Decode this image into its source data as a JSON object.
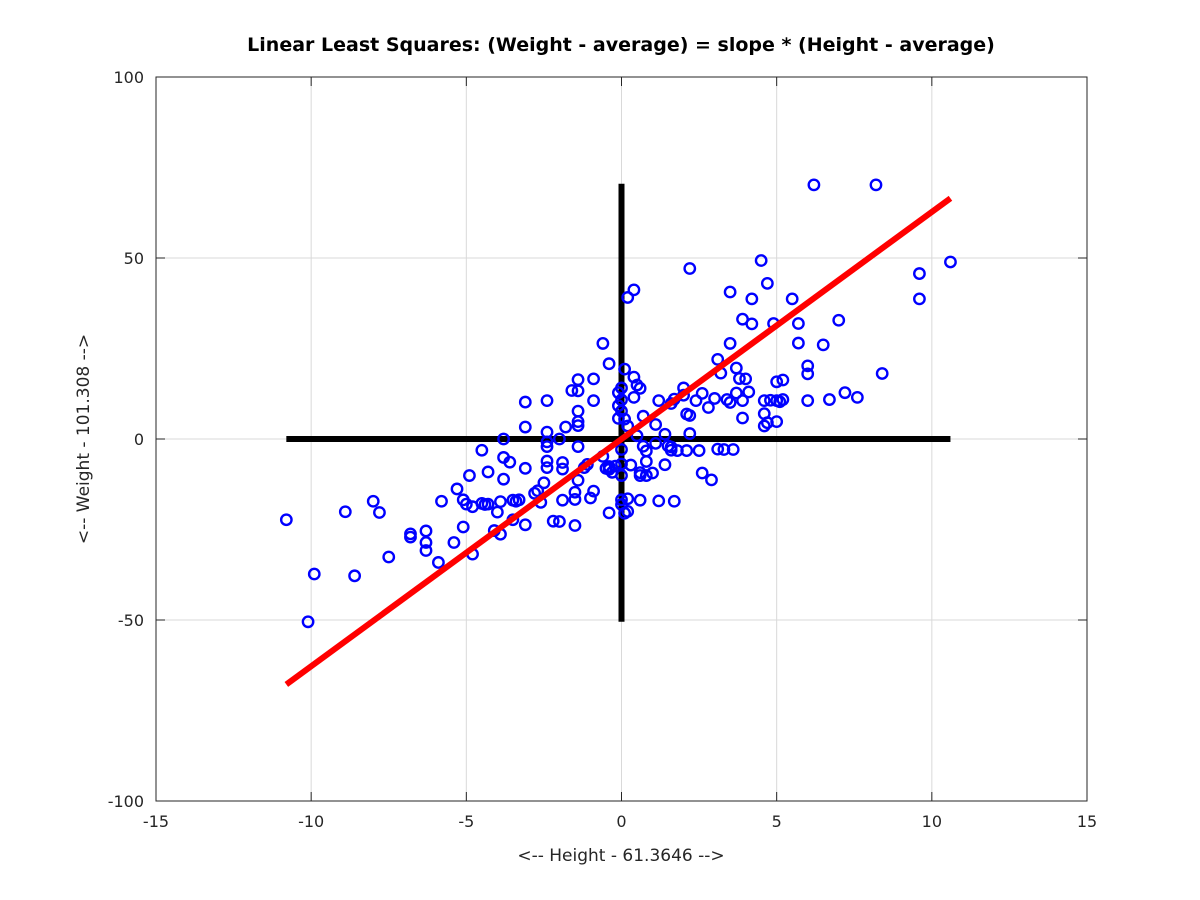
{
  "chart_data": {
    "type": "scatter",
    "title": "Linear Least Squares: (Weight - average) = slope * (Height - average)",
    "xlabel": "<-- Height - 61.3646 -->",
    "ylabel": "<-- Weight - 101.308 -->",
    "xlim": [
      -15,
      15
    ],
    "ylim": [
      -100,
      100
    ],
    "xticks": [
      -15,
      -10,
      -5,
      0,
      5,
      10,
      15
    ],
    "yticks": [
      -100,
      -50,
      0,
      50,
      100
    ],
    "grid": true,
    "colors": {
      "points": "#0000ff",
      "fit": "#ff0000",
      "crosshair": "#000000",
      "grid": "#d9d9d9",
      "axis": "#262626"
    },
    "crosshair": {
      "horizontal": {
        "x": [
          -10.8,
          10.6
        ],
        "y": 0
      },
      "vertical": {
        "x": 0,
        "y": [
          -50.5,
          70.5
        ]
      }
    },
    "fit_line": {
      "name": "",
      "x": [
        -10.8,
        10.6
      ],
      "y": [
        -67.8,
        66.5
      ]
    },
    "series": [
      {
        "name": "",
        "marker": "circle-open",
        "points": [
          [
            -10.8,
            -22.3
          ],
          [
            -10.1,
            -50.5
          ],
          [
            -9.9,
            -37.3
          ],
          [
            -8.9,
            -20.1
          ],
          [
            -8.6,
            -37.8
          ],
          [
            -8.0,
            -17.2
          ],
          [
            -7.8,
            -20.3
          ],
          [
            -7.5,
            -32.6
          ],
          [
            -6.8,
            -27.1
          ],
          [
            -6.8,
            -26.2
          ],
          [
            -6.3,
            -25.4
          ],
          [
            -6.3,
            -28.6
          ],
          [
            -6.3,
            -30.8
          ],
          [
            -5.9,
            -34.1
          ],
          [
            -5.8,
            -17.2
          ],
          [
            -5.4,
            -28.6
          ],
          [
            -5.3,
            -13.8
          ],
          [
            -5.1,
            -16.8
          ],
          [
            -5.1,
            -24.3
          ],
          [
            -5.0,
            -18.0
          ],
          [
            -4.9,
            -10.1
          ],
          [
            -4.8,
            -18.7
          ],
          [
            -4.8,
            -31.8
          ],
          [
            -4.5,
            -3.1
          ],
          [
            -4.5,
            -17.8
          ],
          [
            -4.4,
            -18.1
          ],
          [
            -4.3,
            -18.0
          ],
          [
            -4.3,
            -9.1
          ],
          [
            -4.1,
            -25.3
          ],
          [
            -4.0,
            -20.2
          ],
          [
            -3.9,
            -17.3
          ],
          [
            -3.9,
            -26.3
          ],
          [
            -3.8,
            0.0
          ],
          [
            -3.8,
            -5.1
          ],
          [
            -3.8,
            -11.1
          ],
          [
            -3.6,
            -6.4
          ],
          [
            -3.5,
            -16.9
          ],
          [
            -3.5,
            -22.3
          ],
          [
            -3.4,
            -17.2
          ],
          [
            -3.3,
            -16.8
          ],
          [
            -3.1,
            -23.7
          ],
          [
            -3.1,
            -8.1
          ],
          [
            -3.1,
            3.3
          ],
          [
            -3.1,
            10.2
          ],
          [
            -2.8,
            -15.0
          ],
          [
            -2.7,
            -14.3
          ],
          [
            -2.6,
            -17.5
          ],
          [
            -2.5,
            -12.1
          ],
          [
            -2.4,
            -6.1
          ],
          [
            -2.4,
            -7.9
          ],
          [
            -2.4,
            -2.1
          ],
          [
            -2.4,
            -0.8
          ],
          [
            -2.4,
            1.9
          ],
          [
            -2.4,
            10.6
          ],
          [
            -2.2,
            -22.7
          ],
          [
            -2.0,
            0.0
          ],
          [
            -2.0,
            -22.8
          ],
          [
            -1.9,
            -8.3
          ],
          [
            -1.9,
            -16.9
          ],
          [
            -1.9,
            -6.5
          ],
          [
            -1.8,
            3.3
          ],
          [
            -1.6,
            13.4
          ],
          [
            -1.5,
            -16.7
          ],
          [
            -1.5,
            -14.7
          ],
          [
            -1.5,
            -23.9
          ],
          [
            -1.4,
            -11.4
          ],
          [
            -1.4,
            -2.1
          ],
          [
            -1.4,
            3.7
          ],
          [
            -1.4,
            7.7
          ],
          [
            -1.4,
            4.8
          ],
          [
            -1.4,
            13.3
          ],
          [
            -1.4,
            16.4
          ],
          [
            -1.2,
            -7.9
          ],
          [
            -1.1,
            -7.0
          ],
          [
            -1.0,
            -16.3
          ],
          [
            -0.9,
            -14.4
          ],
          [
            -0.9,
            10.6
          ],
          [
            -0.9,
            16.6
          ],
          [
            -0.6,
            -4.8
          ],
          [
            -0.6,
            26.4
          ],
          [
            -0.5,
            -8.1
          ],
          [
            -0.4,
            -8.4
          ],
          [
            -0.4,
            -7.6
          ],
          [
            -0.4,
            20.8
          ],
          [
            -0.4,
            -20.4
          ],
          [
            -0.4,
            -7.8
          ],
          [
            -0.3,
            -9.2
          ],
          [
            -0.2,
            -7.5
          ],
          [
            -0.1,
            9.2
          ],
          [
            -0.1,
            5.7
          ],
          [
            -0.1,
            12.8
          ],
          [
            0.0,
            14.1
          ],
          [
            0.0,
            10.8
          ],
          [
            0.0,
            7.7
          ],
          [
            0.0,
            -2.9
          ],
          [
            0.0,
            -10.1
          ],
          [
            0.0,
            -6.9
          ],
          [
            0.0,
            -18.1
          ],
          [
            0.0,
            -16.8
          ],
          [
            0.1,
            -20.5
          ],
          [
            0.1,
            19.3
          ],
          [
            0.1,
            5.5
          ],
          [
            0.2,
            39.1
          ],
          [
            0.2,
            -20.0
          ],
          [
            0.2,
            -16.5
          ],
          [
            0.2,
            3.6
          ],
          [
            0.3,
            -7.2
          ],
          [
            0.4,
            17.1
          ],
          [
            0.4,
            11.5
          ],
          [
            0.4,
            41.2
          ],
          [
            0.5,
            0.9
          ],
          [
            0.5,
            14.9
          ],
          [
            0.6,
            14.0
          ],
          [
            0.6,
            -10.1
          ],
          [
            0.6,
            -9.3
          ],
          [
            0.6,
            -16.9
          ],
          [
            0.7,
            -2.0
          ],
          [
            0.7,
            6.3
          ],
          [
            0.8,
            -10.1
          ],
          [
            0.8,
            -3.3
          ],
          [
            0.8,
            -6.2
          ],
          [
            1.0,
            -9.4
          ],
          [
            1.1,
            -1.2
          ],
          [
            1.2,
            10.6
          ],
          [
            1.1,
            4.0
          ],
          [
            1.2,
            -17.1
          ],
          [
            1.4,
            -7.1
          ],
          [
            1.4,
            1.3
          ],
          [
            1.5,
            -1.9
          ],
          [
            1.6,
            -2.2
          ],
          [
            1.6,
            9.8
          ],
          [
            1.6,
            -3.1
          ],
          [
            1.7,
            -17.2
          ],
          [
            1.7,
            11.0
          ],
          [
            1.8,
            -3.2
          ],
          [
            2.0,
            14.1
          ],
          [
            2.0,
            12.1
          ],
          [
            2.1,
            6.9
          ],
          [
            2.1,
            -3.2
          ],
          [
            2.2,
            6.5
          ],
          [
            2.2,
            1.5
          ],
          [
            2.2,
            47.1
          ],
          [
            2.4,
            10.6
          ],
          [
            2.5,
            -3.2
          ],
          [
            2.6,
            12.6
          ],
          [
            2.6,
            -9.4
          ],
          [
            2.8,
            8.7
          ],
          [
            2.9,
            -11.3
          ],
          [
            3.0,
            11.2
          ],
          [
            3.1,
            -2.8
          ],
          [
            3.1,
            22.0
          ],
          [
            3.2,
            18.2
          ],
          [
            3.3,
            -2.9
          ],
          [
            3.4,
            10.9
          ],
          [
            3.5,
            40.6
          ],
          [
            3.5,
            26.4
          ],
          [
            3.5,
            10.1
          ],
          [
            3.6,
            -2.9
          ],
          [
            3.7,
            12.7
          ],
          [
            3.7,
            19.6
          ],
          [
            3.8,
            16.7
          ],
          [
            3.9,
            33.1
          ],
          [
            3.9,
            5.8
          ],
          [
            3.9,
            10.6
          ],
          [
            4.0,
            16.6
          ],
          [
            4.1,
            13.0
          ],
          [
            4.2,
            38.7
          ],
          [
            4.2,
            31.8
          ],
          [
            4.5,
            49.3
          ],
          [
            4.6,
            10.6
          ],
          [
            4.6,
            7.0
          ],
          [
            4.6,
            3.6
          ],
          [
            4.7,
            4.5
          ],
          [
            4.7,
            43.0
          ],
          [
            4.8,
            10.7
          ],
          [
            4.9,
            31.9
          ],
          [
            5.0,
            15.8
          ],
          [
            5.0,
            10.6
          ],
          [
            5.0,
            4.8
          ],
          [
            5.1,
            10.3
          ],
          [
            5.2,
            16.3
          ],
          [
            5.2,
            10.9
          ],
          [
            5.5,
            38.7
          ],
          [
            5.7,
            31.9
          ],
          [
            5.7,
            26.5
          ],
          [
            6.0,
            10.6
          ],
          [
            6.0,
            18.0
          ],
          [
            6.0,
            20.2
          ],
          [
            6.2,
            70.2
          ],
          [
            6.5,
            26.0
          ],
          [
            6.7,
            10.9
          ],
          [
            7.0,
            32.8
          ],
          [
            7.2,
            12.8
          ],
          [
            7.6,
            11.5
          ],
          [
            8.2,
            70.2
          ],
          [
            8.4,
            18.1
          ],
          [
            9.6,
            45.7
          ],
          [
            9.6,
            38.7
          ],
          [
            10.6,
            48.9
          ]
        ]
      }
    ]
  }
}
